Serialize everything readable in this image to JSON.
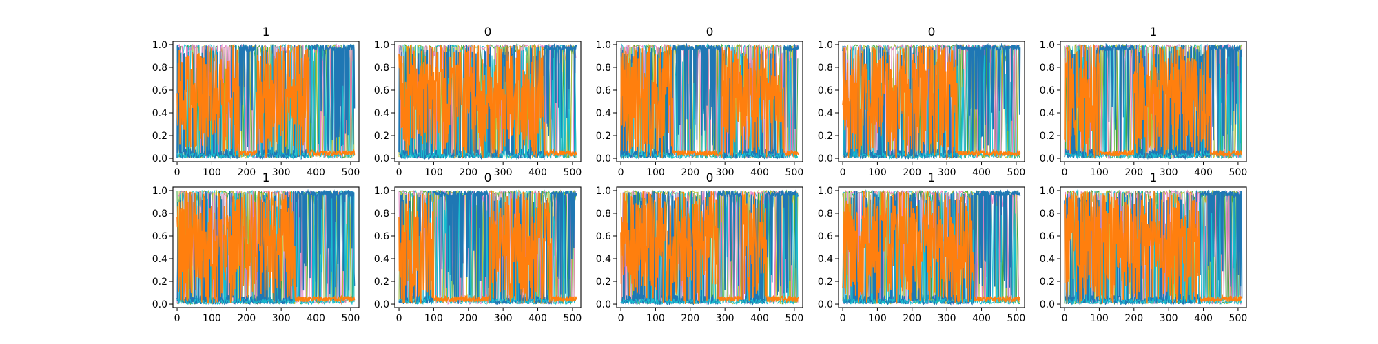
{
  "chart_data": {
    "type": "line",
    "layout": "2x5 grid of subplots",
    "grid": false,
    "legend": "none",
    "x_ticks": [
      "0",
      "100",
      "200",
      "300",
      "400",
      "500"
    ],
    "y_ticks": [
      "0.0",
      "0.2",
      "0.4",
      "0.6",
      "0.8",
      "1.0"
    ],
    "xlim": [
      -12,
      524
    ],
    "ylim": [
      -0.03,
      1.03
    ],
    "n_points": 512,
    "palette": [
      "#1f77b4",
      "#ff7f0e",
      "#2ca02c",
      "#d62728",
      "#9467bd",
      "#8c564b",
      "#e377c2",
      "#7f7f7f",
      "#bcbd22",
      "#17becf"
    ],
    "series_colors": {
      "dominant_high": "#1f77b4",
      "dominant_alt": "#ff7f0e"
    },
    "subplots": [
      {
        "title": "1",
        "orange_regions": [
          [
            0,
            180
          ],
          [
            230,
            380
          ]
        ]
      },
      {
        "title": "0",
        "orange_regions": [
          [
            0,
            420
          ]
        ]
      },
      {
        "title": "0",
        "orange_regions": [
          [
            0,
            150
          ],
          [
            290,
            470
          ]
        ]
      },
      {
        "title": "0",
        "orange_regions": [
          [
            0,
            330
          ]
        ]
      },
      {
        "title": "1",
        "orange_regions": [
          [
            0,
            100
          ],
          [
            200,
            420
          ]
        ]
      },
      {
        "title": "1",
        "orange_regions": [
          [
            0,
            340
          ]
        ]
      },
      {
        "title": "0",
        "orange_regions": [
          [
            0,
            100
          ],
          [
            260,
            440
          ]
        ]
      },
      {
        "title": "0",
        "orange_regions": [
          [
            0,
            280
          ],
          [
            350,
            420
          ]
        ]
      },
      {
        "title": "1",
        "orange_regions": [
          [
            0,
            380
          ]
        ]
      },
      {
        "title": "1",
        "orange_regions": [
          [
            0,
            390
          ]
        ]
      }
    ]
  }
}
